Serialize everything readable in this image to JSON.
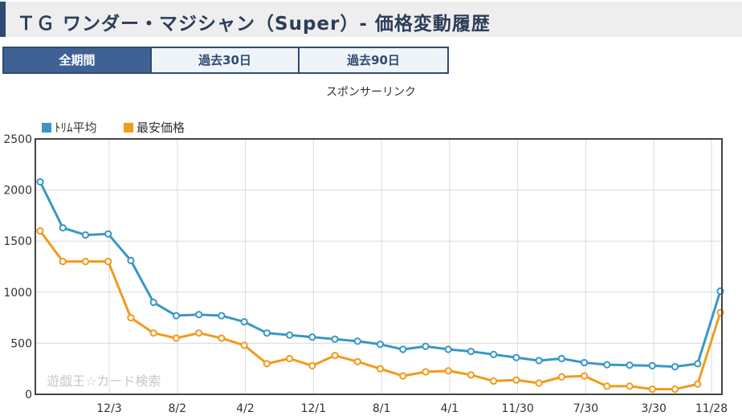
{
  "page": {
    "title": "ＴＧ ワンダー・マジシャン（Super）- 価格変動履歴",
    "tabs": [
      "全期間",
      "過去30日",
      "過去90日"
    ],
    "active_tab": 0,
    "sponsor": "スポンサーリンク"
  },
  "chart_data": {
    "type": "line",
    "title": "",
    "xlabel": "",
    "ylabel": "",
    "ylim": [
      0,
      2500
    ],
    "y_ticks": [
      0,
      500,
      1000,
      1500,
      2000,
      2500
    ],
    "x_tick_labels": [
      "12/3",
      "8/2",
      "4/2",
      "12/1",
      "8/1",
      "4/1",
      "11/30",
      "7/30",
      "3/30",
      "11/28"
    ],
    "legend": {
      "position": "top-left"
    },
    "grid": true,
    "watermark": "遊戯王☆カード検索",
    "series": [
      {
        "name": "ﾄﾘﾑ平均",
        "color": "#3a97c4",
        "values": [
          2080,
          1630,
          1560,
          1570,
          1310,
          900,
          770,
          780,
          770,
          710,
          600,
          580,
          560,
          540,
          520,
          490,
          440,
          470,
          440,
          420,
          390,
          360,
          330,
          350,
          310,
          290,
          285,
          280,
          270,
          300,
          1010
        ]
      },
      {
        "name": "最安価格",
        "color": "#f29a1c",
        "values": [
          1600,
          1300,
          1300,
          1300,
          750,
          600,
          550,
          600,
          550,
          480,
          300,
          350,
          280,
          380,
          320,
          250,
          180,
          220,
          230,
          190,
          130,
          140,
          110,
          170,
          180,
          80,
          80,
          50,
          50,
          100,
          800
        ]
      }
    ]
  }
}
